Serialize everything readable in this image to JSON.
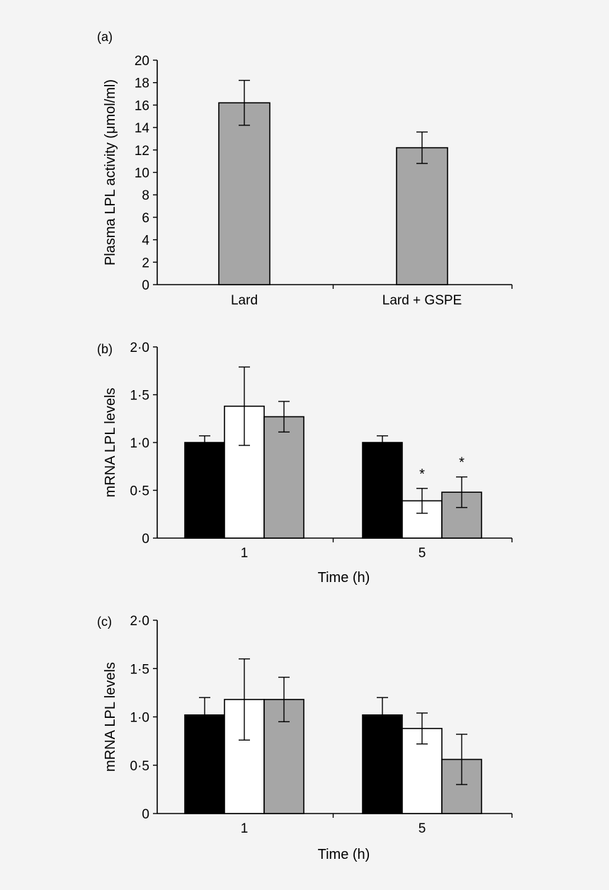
{
  "chart_data": [
    {
      "panel": "(a)",
      "type": "bar",
      "categories": [
        "Lard",
        "Lard + GSPE"
      ],
      "series": [
        {
          "values": [
            16.2,
            12.2
          ],
          "errors": [
            2.0,
            1.4
          ]
        }
      ],
      "colors": [
        "#a6a6a6"
      ],
      "ylabel": "Plasma LPL activity (μmol/ml)",
      "xlabel": "",
      "ylim": [
        0,
        20
      ],
      "yticks": [
        0,
        2,
        4,
        6,
        8,
        10,
        12,
        14,
        16,
        18,
        20
      ],
      "ytick_labels": [
        "0",
        "2",
        "4",
        "6",
        "8",
        "10",
        "12",
        "14",
        "16",
        "18",
        "20"
      ],
      "annotations": []
    },
    {
      "panel": "(b)",
      "type": "bar",
      "categories": [
        "1",
        "5"
      ],
      "series": [
        {
          "values": [
            1.0,
            1.0
          ],
          "errors": [
            0.07,
            0.07
          ]
        },
        {
          "values": [
            1.38,
            0.39
          ],
          "errors": [
            0.41,
            0.13
          ]
        },
        {
          "values": [
            1.27,
            0.48
          ],
          "errors": [
            0.16,
            0.16
          ]
        }
      ],
      "colors": [
        "#000000",
        "#ffffff",
        "#a6a6a6"
      ],
      "ylabel": "mRNA LPL levels",
      "xlabel": "Time (h)",
      "ylim": [
        0,
        2.0
      ],
      "yticks": [
        0,
        0.5,
        1.0,
        1.5,
        2.0
      ],
      "ytick_labels": [
        "0",
        "0·5",
        "1·0",
        "1·5",
        "2·0"
      ],
      "annotations": [
        {
          "category": 1,
          "series": 1,
          "text": "*"
        },
        {
          "category": 1,
          "series": 2,
          "text": "*"
        }
      ]
    },
    {
      "panel": "(c)",
      "type": "bar",
      "categories": [
        "1",
        "5"
      ],
      "series": [
        {
          "values": [
            1.02,
            1.02
          ],
          "errors": [
            0.18,
            0.18
          ]
        },
        {
          "values": [
            1.18,
            0.88
          ],
          "errors": [
            0.42,
            0.16
          ]
        },
        {
          "values": [
            1.18,
            0.56
          ],
          "errors": [
            0.23,
            0.26
          ]
        }
      ],
      "colors": [
        "#000000",
        "#ffffff",
        "#a6a6a6"
      ],
      "ylabel": "mRNA LPL levels",
      "xlabel": "Time (h)",
      "ylim": [
        0,
        2.0
      ],
      "yticks": [
        0,
        0.5,
        1.0,
        1.5,
        2.0
      ],
      "ytick_labels": [
        "0",
        "0·5",
        "1·0",
        "1·5",
        "2·0"
      ],
      "annotations": []
    }
  ]
}
